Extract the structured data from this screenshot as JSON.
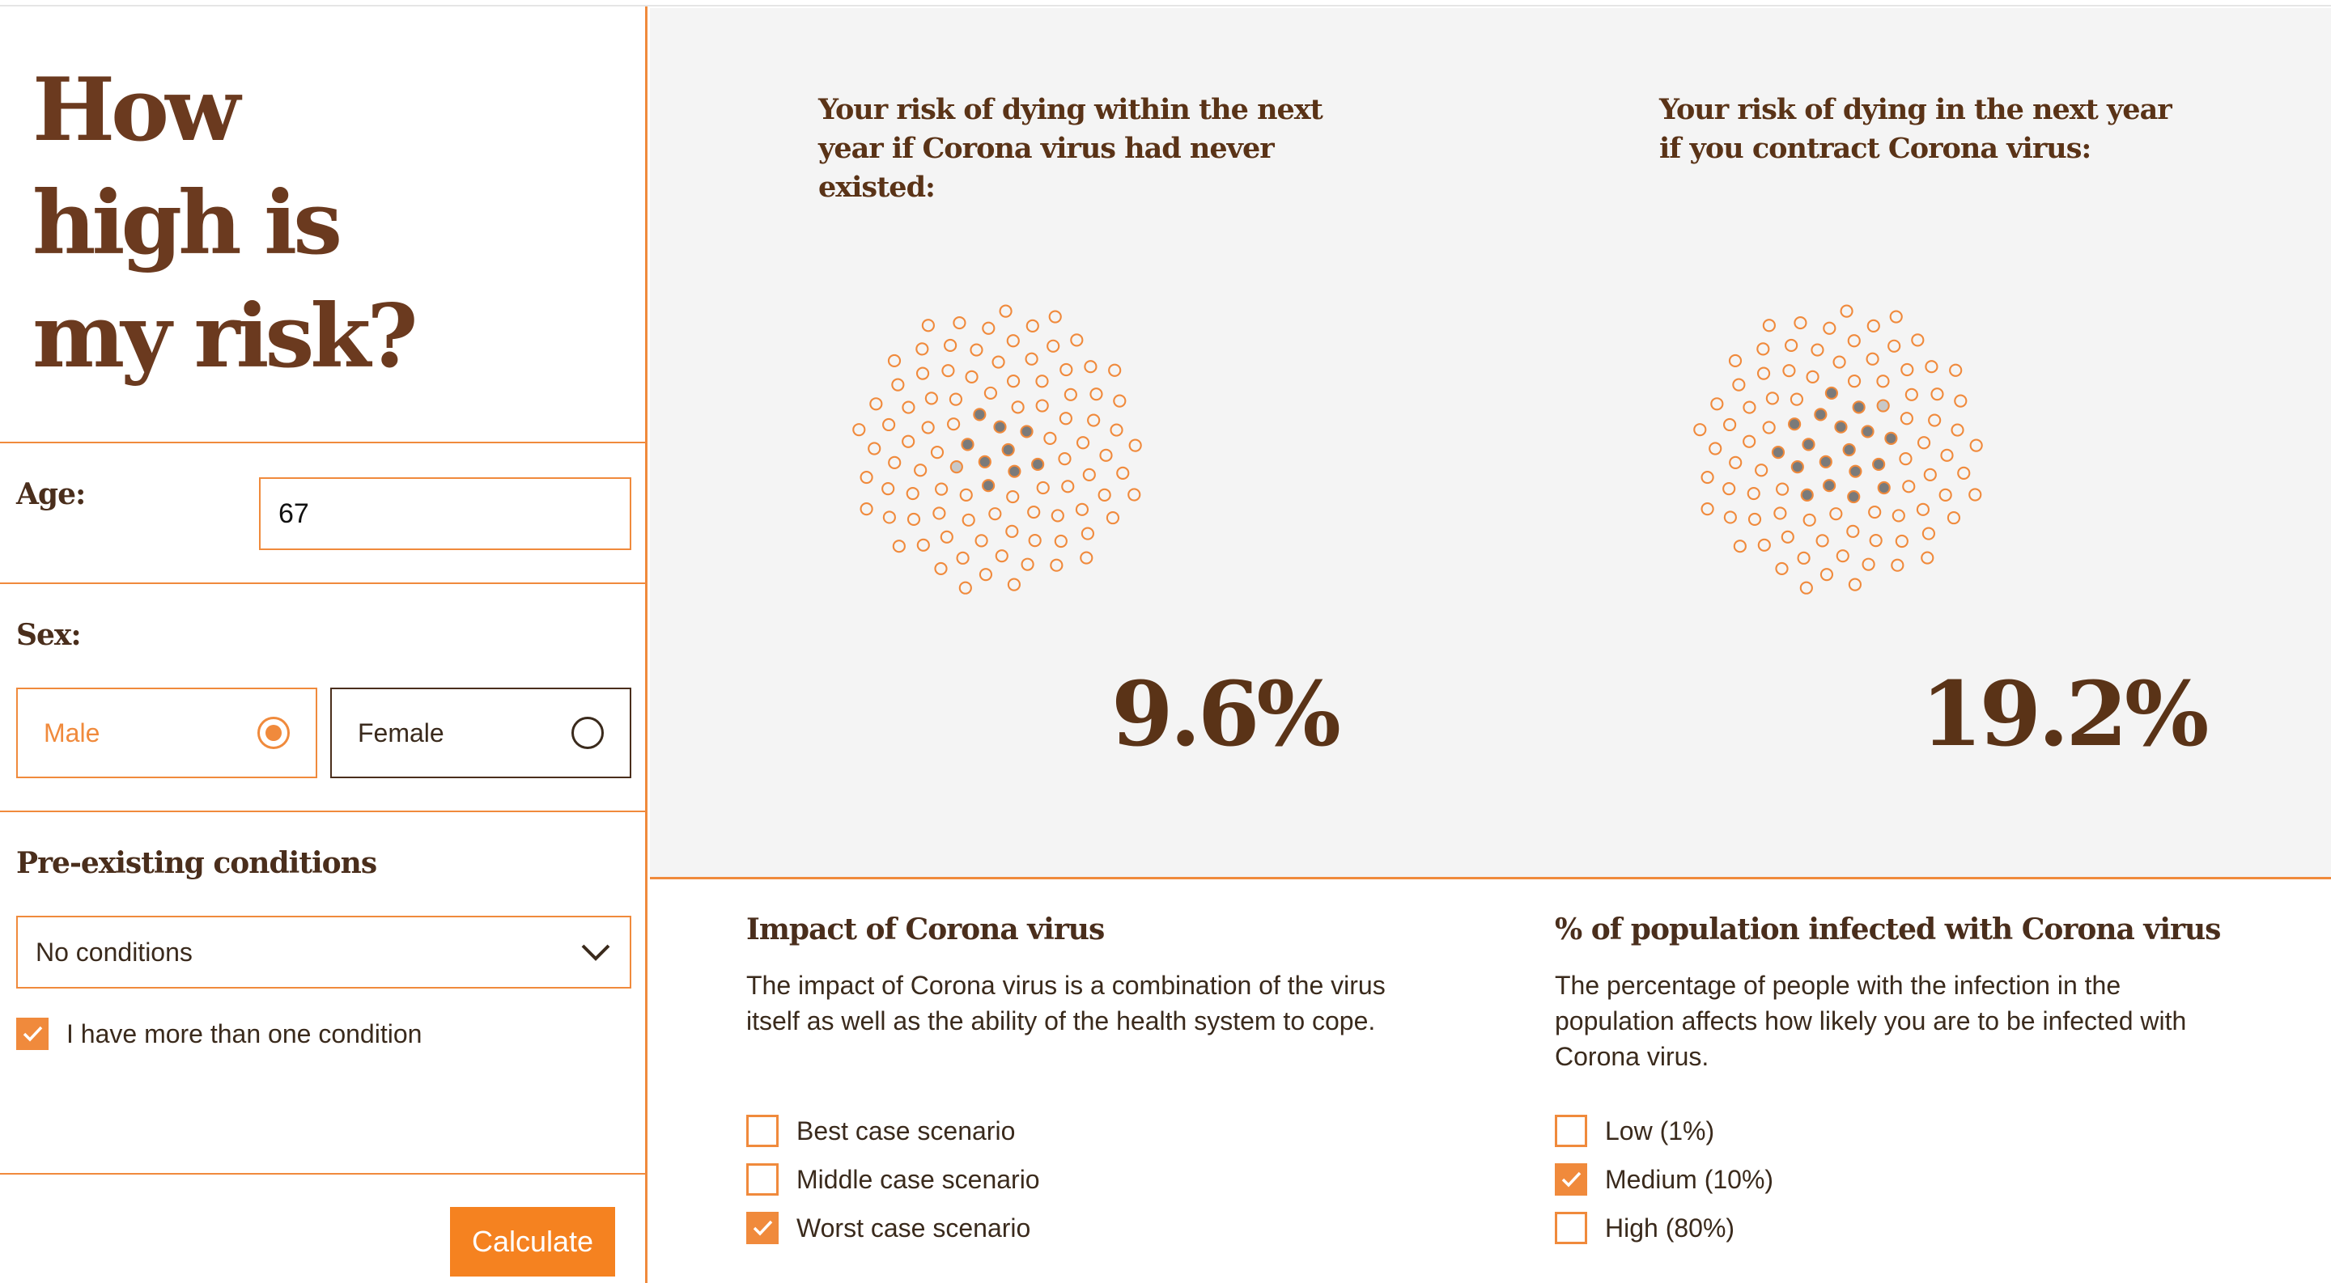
{
  "title": {
    "line1": "How",
    "line2": "high is",
    "line3": "my risk?"
  },
  "age": {
    "label": "Age:",
    "value": "67"
  },
  "sex": {
    "label": "Sex:",
    "options": [
      "Male",
      "Female"
    ],
    "selected": "Male"
  },
  "conditions": {
    "label": "Pre-existing conditions",
    "selected": "No conditions",
    "multi_label": "I have more than one condition",
    "multi_checked": true
  },
  "calculate_label": "Calculate",
  "viz": {
    "left": {
      "heading": "Your risk of dying within the next year if Corona virus had never existed:",
      "percent": "9.6%",
      "dark_dots": 9,
      "light_dots": 1
    },
    "right": {
      "heading": "Your risk of dying in the next year if you contract Corona virus:",
      "percent": "19.2%",
      "dark_dots": 18,
      "light_dots": 1
    }
  },
  "impact": {
    "heading": "Impact of Corona virus",
    "text": "The impact of Corona virus is a combination of the virus itself as well as the ability of the health system to cope.",
    "options": [
      {
        "label": "Best case scenario",
        "checked": false
      },
      {
        "label": "Middle case scenario",
        "checked": false
      },
      {
        "label": "Worst case scenario",
        "checked": true
      }
    ]
  },
  "population": {
    "heading": "% of population infected with Corona virus",
    "text": "The percentage of people with the infection in the population affects how likely you are to be infected with Corona virus.",
    "options": [
      {
        "label": "Low (1%)",
        "checked": false
      },
      {
        "label": "Medium (10%)",
        "checked": true
      },
      {
        "label": "High (80%)",
        "checked": false
      }
    ]
  },
  "colors": {
    "accent": "#f08a3c",
    "brown": "#6b3a1f",
    "dot_dark": "#7a7a7a",
    "dot_light": "#c8c8c8",
    "panel_bg": "#f4f4f4"
  }
}
